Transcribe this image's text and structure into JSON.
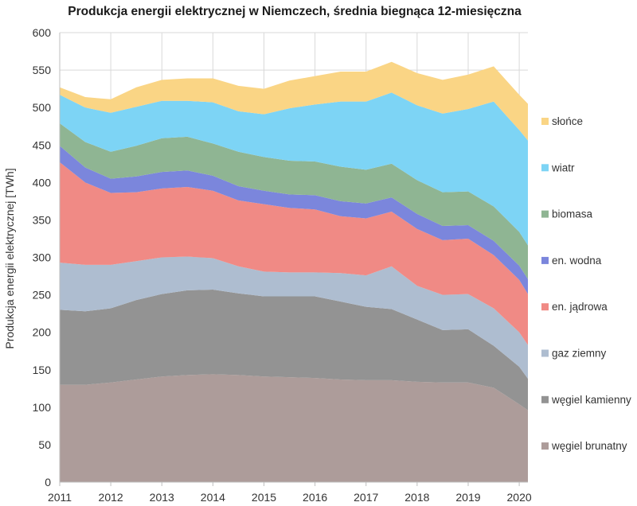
{
  "chart_data": {
    "type": "area",
    "stacked": true,
    "title": "Produkcja energii elektrycznej w Niemczech, średnia biegnąca 12-miesięczna",
    "xlabel": "",
    "ylabel": "Produkcja energii elektrycznej [TWh]",
    "xlim": [
      2011.0,
      2020.17
    ],
    "ylim": [
      0,
      600
    ],
    "x_ticks": [
      "2011",
      "2012",
      "2013",
      "2014",
      "2015",
      "2016",
      "2017",
      "2018",
      "2019",
      "2020"
    ],
    "y_ticks": [
      "0",
      "50",
      "100",
      "150",
      "200",
      "250",
      "300",
      "350",
      "400",
      "450",
      "500",
      "550",
      "600"
    ],
    "grid": true,
    "legend_position": "right",
    "x": [
      2011.0,
      2011.5,
      2012.0,
      2012.5,
      2013.0,
      2013.5,
      2014.0,
      2014.5,
      2015.0,
      2015.5,
      2016.0,
      2016.5,
      2017.0,
      2017.5,
      2018.0,
      2018.5,
      2019.0,
      2019.5,
      2020.0,
      2020.17
    ],
    "series": [
      {
        "name": "węgiel brunatny",
        "color": "#ad9c9a",
        "values": [
          130,
          130,
          133,
          137,
          141,
          143,
          144,
          143,
          141,
          140,
          139,
          137,
          136,
          136,
          134,
          133,
          133,
          126,
          104,
          96
        ]
      },
      {
        "name": "węgiel kamienny",
        "color": "#939393",
        "values": [
          100,
          98,
          99,
          106,
          110,
          113,
          113,
          109,
          107,
          108,
          109,
          104,
          98,
          95,
          83,
          70,
          71,
          56,
          50,
          42
        ]
      },
      {
        "name": "gaz ziemny",
        "color": "#aebdd0",
        "values": [
          63,
          62,
          58,
          52,
          49,
          45,
          42,
          36,
          33,
          32,
          32,
          38,
          42,
          57,
          45,
          47,
          47,
          50,
          46,
          45
        ]
      },
      {
        "name": "en. jądrowa",
        "color": "#f08a85",
        "values": [
          134,
          110,
          96,
          92,
          92,
          93,
          90,
          88,
          90,
          86,
          84,
          76,
          76,
          73,
          76,
          73,
          74,
          71,
          70,
          68
        ]
      },
      {
        "name": "en. wodna",
        "color": "#7b86dc",
        "values": [
          22,
          20,
          19,
          21,
          22,
          22,
          20,
          19,
          18,
          18,
          19,
          20,
          20,
          19,
          20,
          19,
          18,
          19,
          19,
          20
        ]
      },
      {
        "name": "biomasa",
        "color": "#8fb593",
        "values": [
          30,
          34,
          36,
          41,
          45,
          45,
          43,
          46,
          45,
          45,
          45,
          46,
          45,
          45,
          45,
          45,
          45,
          46,
          45,
          45
        ]
      },
      {
        "name": "wiatr",
        "color": "#7dd4f5",
        "values": [
          38,
          46,
          52,
          52,
          50,
          48,
          55,
          54,
          57,
          70,
          76,
          87,
          91,
          95,
          100,
          105,
          110,
          140,
          136,
          140
        ]
      },
      {
        "name": "słońce",
        "color": "#fad585",
        "values": [
          10,
          14,
          18,
          26,
          28,
          30,
          32,
          34,
          34,
          37,
          38,
          40,
          40,
          41,
          43,
          45,
          46,
          47,
          47,
          49
        ]
      }
    ]
  }
}
